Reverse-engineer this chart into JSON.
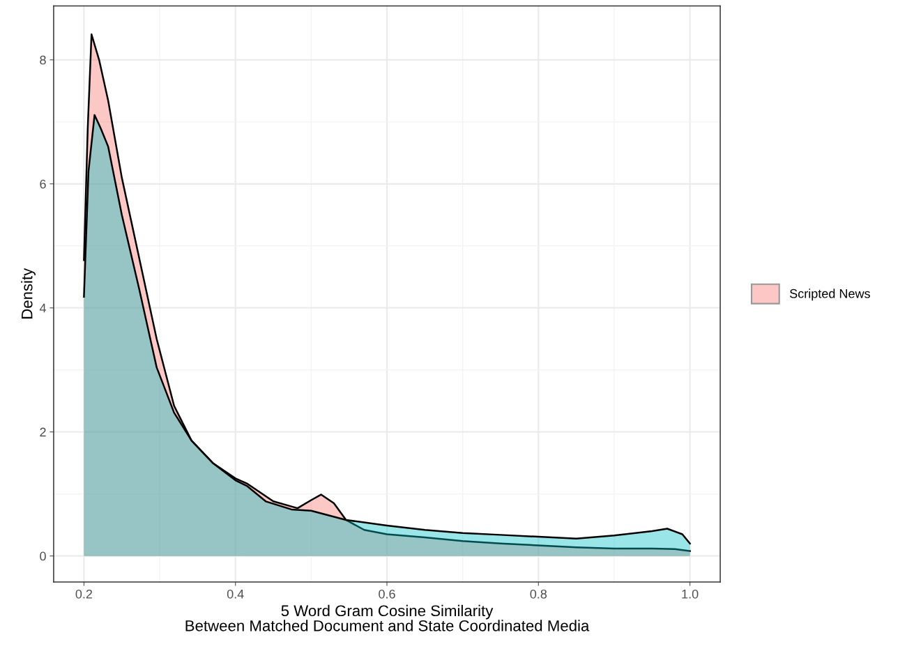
{
  "chart_data": {
    "type": "area",
    "xlabel": "5 Word Gram Cosine Similarity\nBetween Matched Document and State Coordinated Media",
    "ylabel": "Density",
    "xlim": [
      0.16,
      1.04
    ],
    "ylim": [
      -0.42,
      8.87
    ],
    "xticks": [
      {
        "value": 0.2,
        "label": "0.2"
      },
      {
        "value": 0.4,
        "label": "0.4"
      },
      {
        "value": 0.6,
        "label": "0.6"
      },
      {
        "value": 0.8,
        "label": "0.8"
      },
      {
        "value": 1.0,
        "label": "1.0"
      }
    ],
    "yticks": [
      0,
      2,
      4,
      6,
      8
    ],
    "grid": true,
    "legend": "right",
    "series": [
      {
        "name": "Scripted News",
        "color": "#f8766d",
        "x": [
          0.2,
          0.205,
          0.21,
          0.22,
          0.232,
          0.25,
          0.273,
          0.296,
          0.319,
          0.342,
          0.37,
          0.4,
          0.415,
          0.45,
          0.482,
          0.5,
          0.513,
          0.53,
          0.546,
          0.57,
          0.6,
          0.65,
          0.7,
          0.75,
          0.8,
          0.85,
          0.9,
          0.95,
          0.98,
          1.0
        ],
        "values": [
          4.77,
          6.9,
          8.41,
          8.0,
          7.34,
          6.1,
          4.8,
          3.5,
          2.42,
          1.86,
          1.5,
          1.25,
          1.17,
          0.88,
          0.77,
          0.9,
          0.99,
          0.85,
          0.58,
          0.42,
          0.35,
          0.3,
          0.24,
          0.2,
          0.17,
          0.14,
          0.12,
          0.12,
          0.11,
          0.08
        ]
      },
      {
        "color": "#00bfc4",
        "x": [
          0.2,
          0.206,
          0.214,
          0.222,
          0.232,
          0.25,
          0.273,
          0.296,
          0.319,
          0.342,
          0.37,
          0.4,
          0.415,
          0.44,
          0.474,
          0.5,
          0.546,
          0.6,
          0.65,
          0.7,
          0.75,
          0.8,
          0.85,
          0.9,
          0.95,
          0.97,
          0.99,
          1.0
        ],
        "values": [
          4.18,
          6.2,
          7.11,
          6.9,
          6.6,
          5.5,
          4.3,
          3.04,
          2.31,
          1.86,
          1.5,
          1.22,
          1.13,
          0.88,
          0.75,
          0.73,
          0.58,
          0.49,
          0.42,
          0.37,
          0.34,
          0.31,
          0.28,
          0.33,
          0.4,
          0.44,
          0.35,
          0.2
        ]
      }
    ]
  }
}
